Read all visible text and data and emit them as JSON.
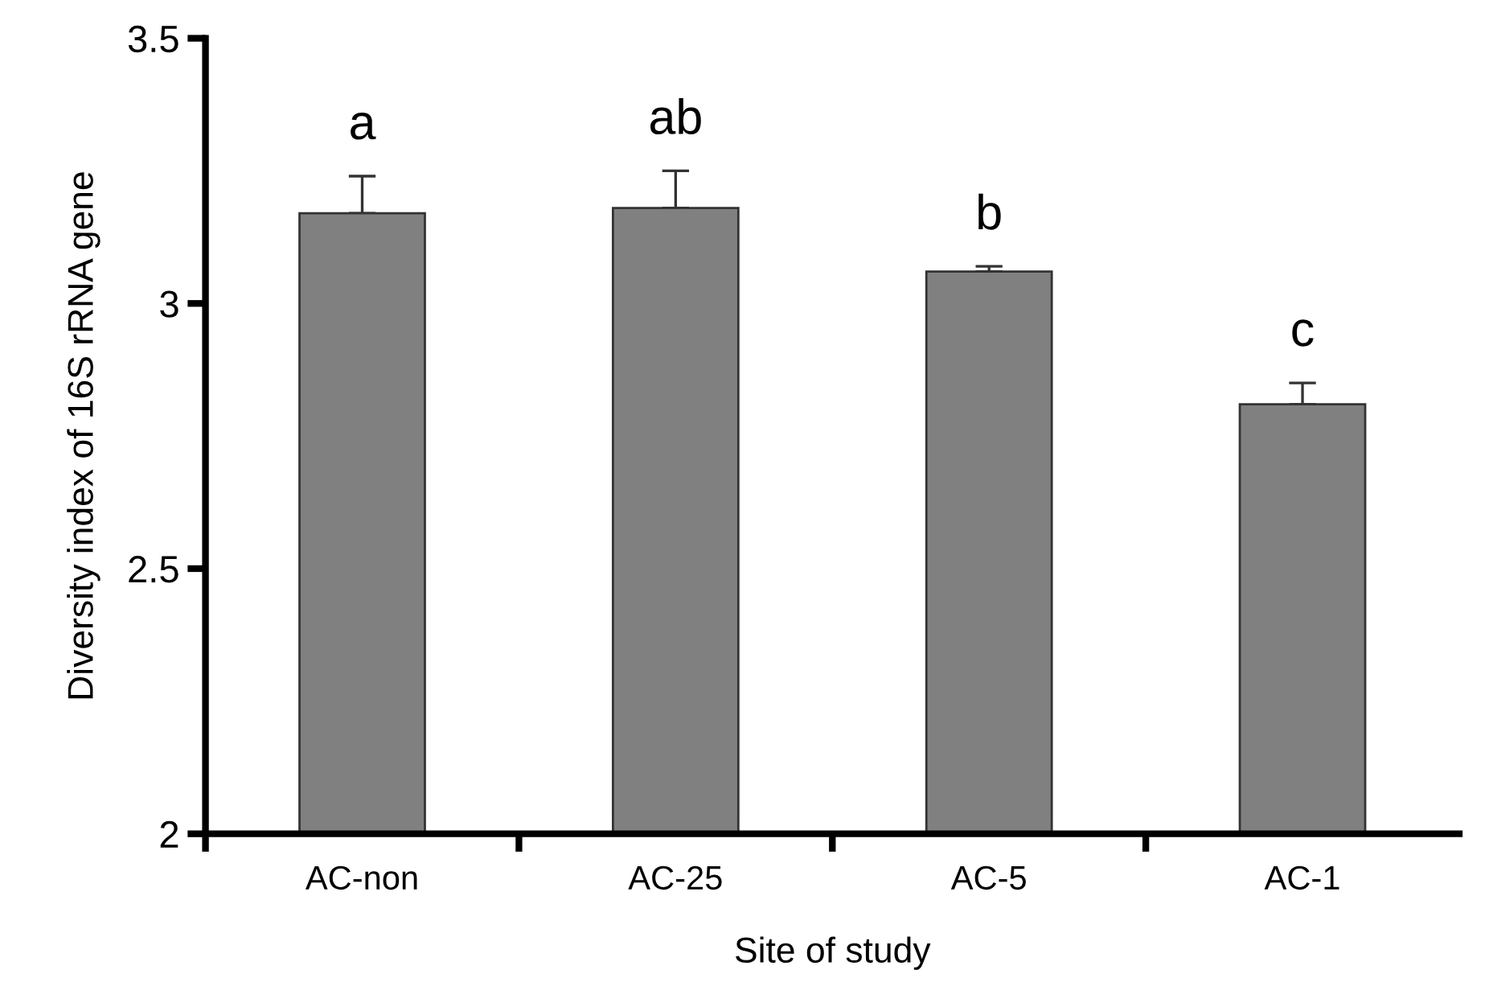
{
  "chart_data": {
    "type": "bar",
    "xlabel": "Site of study",
    "ylabel": "Diversity index of 16S rRNA gene",
    "categories": [
      "AC-non",
      "AC-25",
      "AC-5",
      "AC-1"
    ],
    "values": [
      3.17,
      3.18,
      3.06,
      2.81
    ],
    "errors": [
      0.07,
      0.07,
      0.01,
      0.04
    ],
    "color": "#808080",
    "ylim": [
      2,
      3.5
    ],
    "yticks": [
      2,
      2.5,
      3,
      3.5
    ],
    "grid": false,
    "legend": false,
    "annotations": [
      "a",
      "ab",
      "b",
      "c"
    ]
  }
}
